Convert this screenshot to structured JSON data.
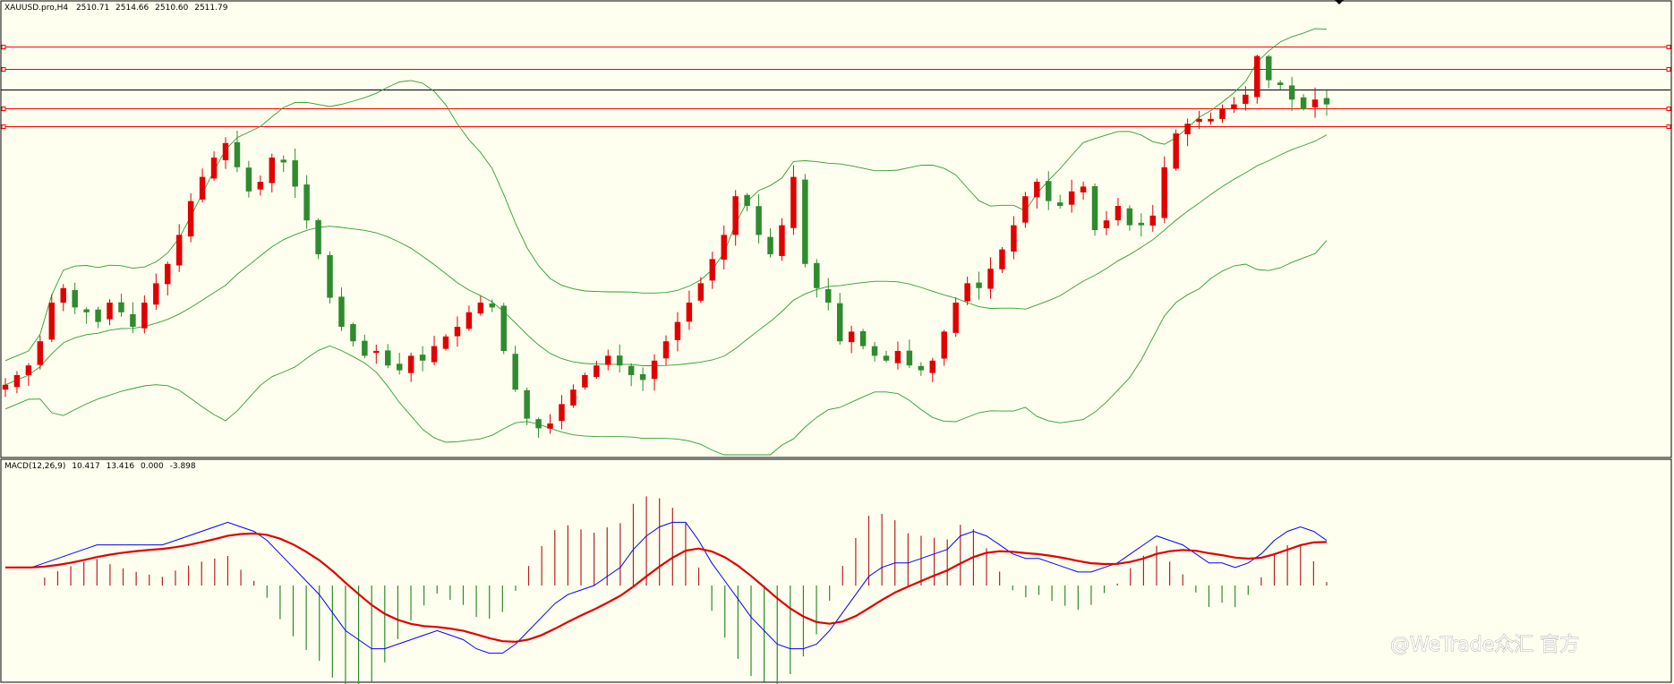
{
  "chart_data": {
    "type": "candlestick",
    "symbol_header": "XAUUSD.pro,H4",
    "ohlc_readout": [
      "2510.71",
      "2514.66",
      "2510.60",
      "2511.79"
    ],
    "price_panel": {
      "ylim": [
        2440,
        2530
      ],
      "horizontal_levels": [
        {
          "price": 2522.9,
          "color": "#ff0000"
        },
        {
          "price": 2518.4,
          "color": "#ff0000"
        },
        {
          "price": 2514.0,
          "color": "#000000"
        },
        {
          "price": 2510.2,
          "color": "#ff0000"
        },
        {
          "price": 2506.5,
          "color": "#ff0000"
        }
      ],
      "bollinger_bands": {
        "period": 20,
        "deviations": 2,
        "color": "#2e9e2e"
      }
    },
    "macd_panel": {
      "label": "MACD(12,26,9)",
      "readout": [
        "10.417",
        "13.416",
        "0.000",
        "-3.898"
      ],
      "ylim": [
        -16,
        25
      ],
      "macd_line_color": "#0000ff",
      "signal_line_color": "#e00000",
      "histogram_up_color": "#b22222",
      "histogram_down_color": "#2e8b2e"
    },
    "price_series": [
      2453,
      2455,
      2457,
      2462,
      2470,
      2473,
      2469,
      2468,
      2466,
      2470,
      2468,
      2465,
      2470,
      2474,
      2478,
      2484,
      2491,
      2496,
      2500,
      2503,
      2498,
      2493,
      2495,
      2500,
      2499,
      2494,
      2487,
      2480,
      2471,
      2465,
      2462,
      2459,
      2460,
      2457,
      2456,
      2459,
      2458,
      2461,
      2463,
      2465,
      2468,
      2470,
      2469,
      2460,
      2452,
      2446,
      2444,
      2445,
      2449,
      2452,
      2455,
      2457,
      2459,
      2457,
      2455,
      2454,
      2458,
      2462,
      2466,
      2470,
      2474,
      2479,
      2484,
      2492,
      2490,
      2484,
      2480,
      2486,
      2496,
      2478,
      2473,
      2470,
      2462,
      2464,
      2461,
      2459,
      2458,
      2460,
      2457,
      2456,
      2458,
      2464,
      2470,
      2474,
      2473,
      2477,
      2481,
      2486,
      2492,
      2495,
      2491,
      2490,
      2493,
      2494,
      2485,
      2487,
      2490,
      2486,
      2486,
      2488,
      2498,
      2505,
      2507,
      2508,
      2508,
      2510,
      2511,
      2513,
      2521,
      2516,
      2515,
      2512,
      2510,
      2512,
      2511
    ],
    "macd_series": [
      4,
      4,
      4,
      5,
      6,
      7,
      8,
      9,
      9,
      9,
      9,
      9,
      9,
      10,
      11,
      12,
      13,
      14,
      13,
      12,
      10,
      7,
      4,
      1,
      -2,
      -6,
      -10,
      -12,
      -14,
      -14,
      -13,
      -12,
      -11,
      -10,
      -11,
      -12,
      -14,
      -15,
      -15,
      -13,
      -10,
      -7,
      -4,
      -2,
      -1,
      0,
      2,
      4,
      8,
      11,
      13,
      14,
      14,
      10,
      5,
      1,
      -3,
      -7,
      -10,
      -13,
      -14,
      -14,
      -13,
      -10,
      -6,
      -2,
      2,
      4,
      5,
      5,
      6,
      7,
      8,
      11,
      12,
      11,
      9,
      7,
      6,
      6,
      5,
      4,
      3,
      3,
      4,
      5,
      7,
      9,
      11,
      10,
      9,
      7,
      5,
      5,
      4,
      5,
      7,
      10,
      12,
      13,
      12,
      10
    ]
  },
  "branding": {
    "watermark": "@WeTrade众汇 官方"
  }
}
